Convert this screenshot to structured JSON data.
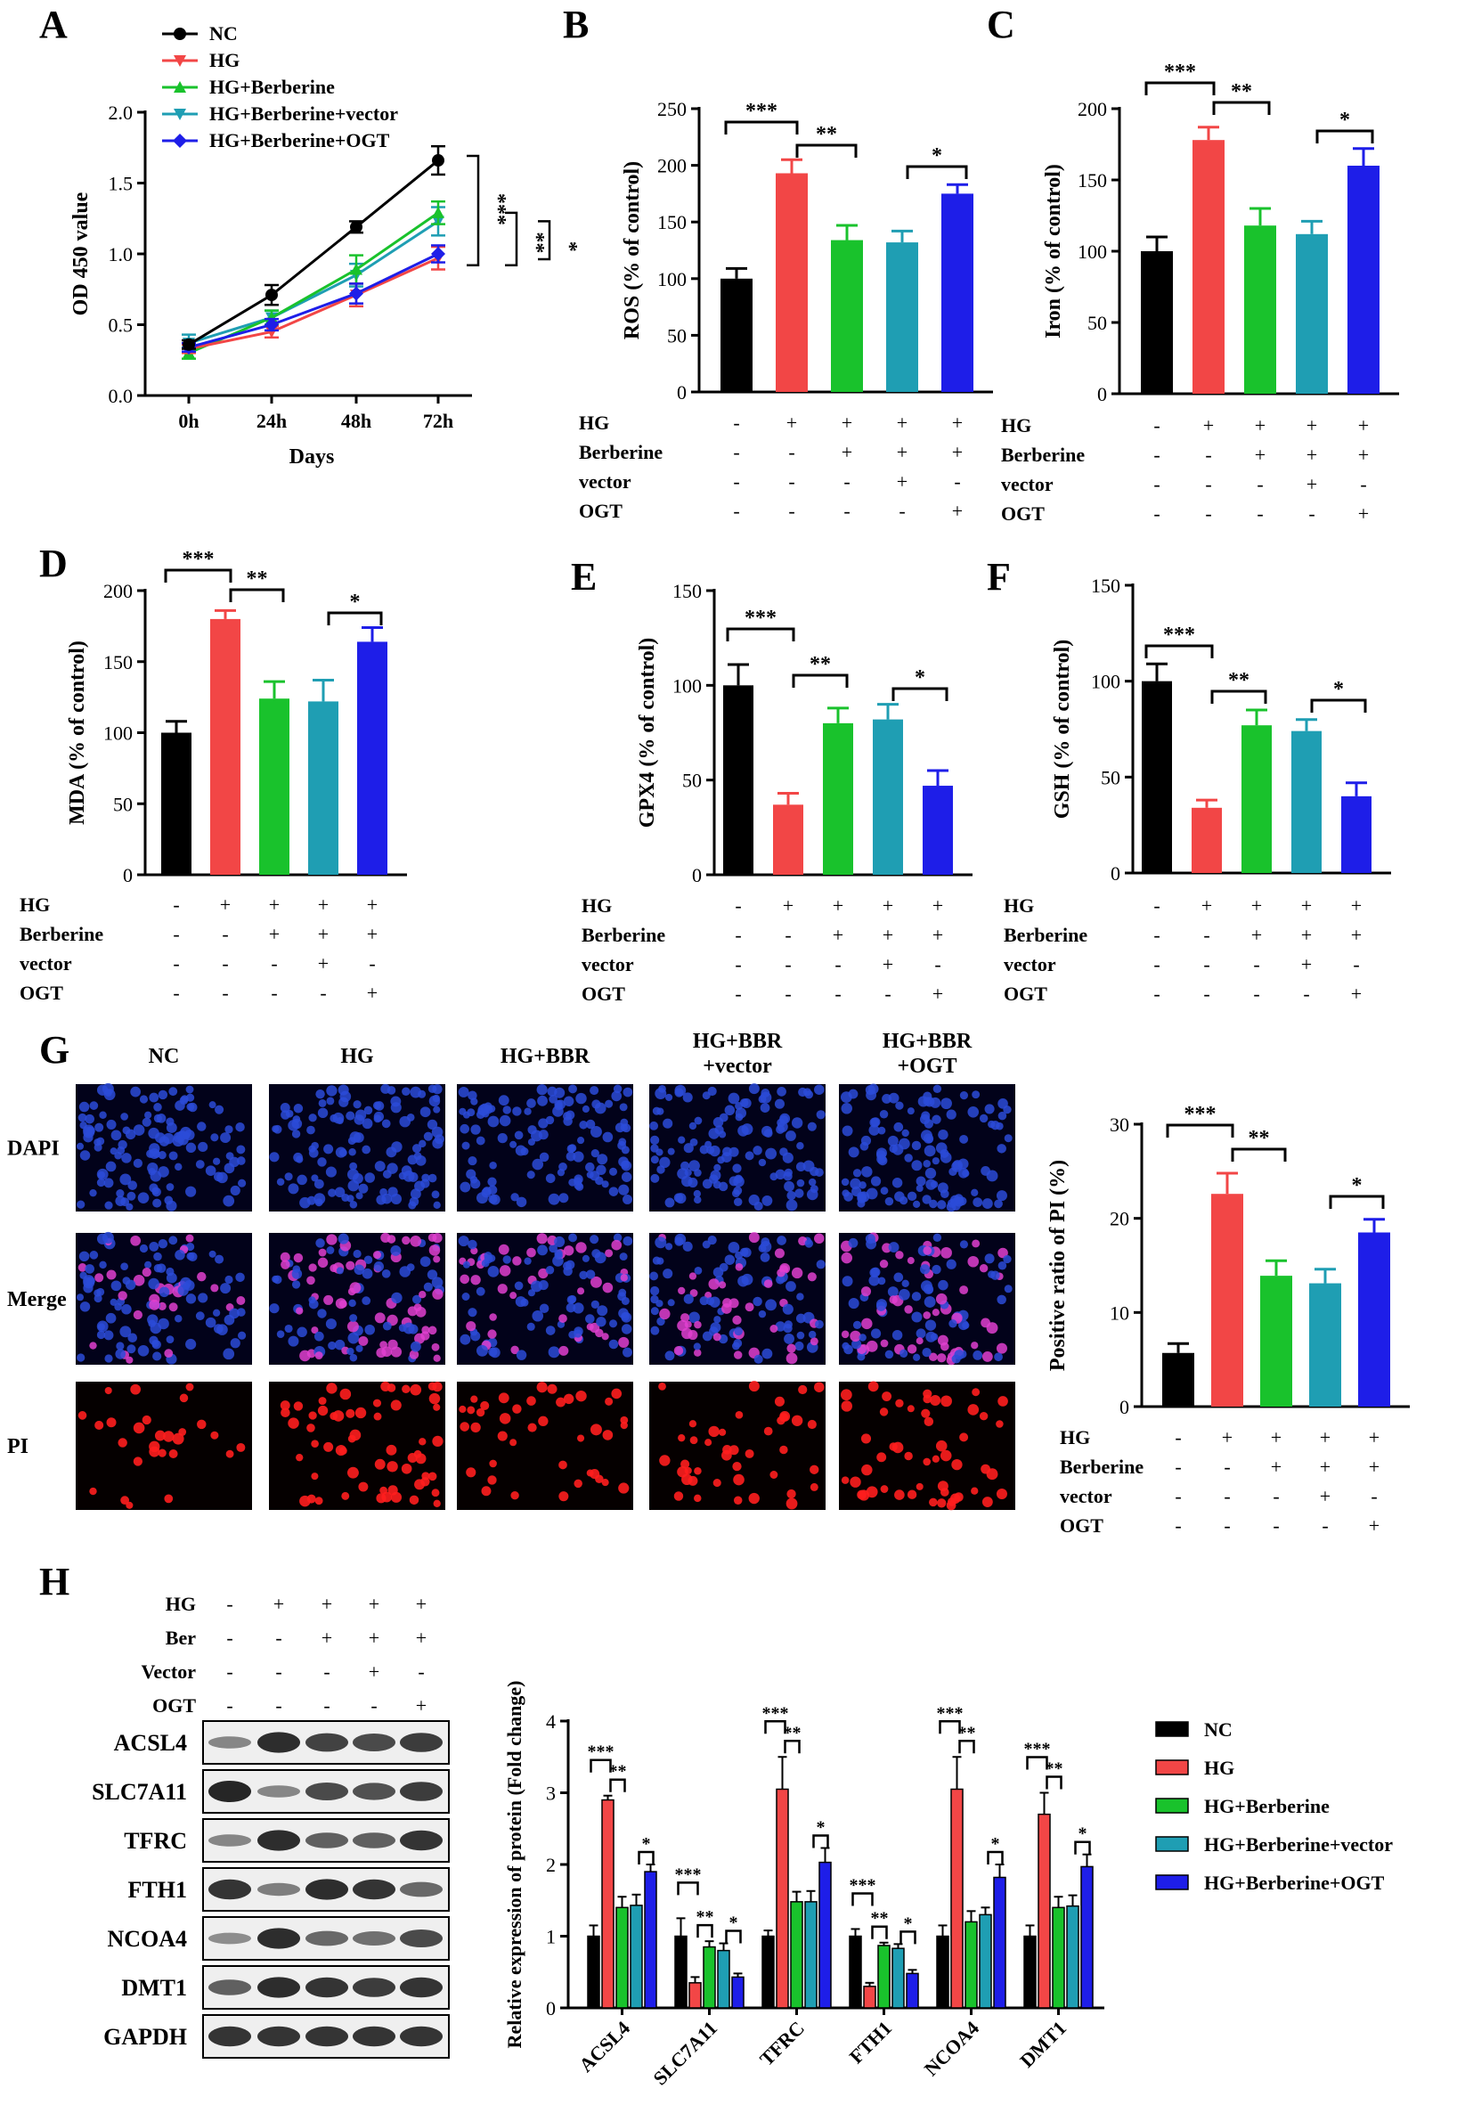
{
  "colors": {
    "NC": "#000000",
    "HG": "#f24646",
    "HG+Berberine": "#19c22c",
    "HG+Berberine+vector": "#1f9eb3",
    "HG+Berberine+OGT": "#1e1ee8",
    "axis": "#000000",
    "blot_band": "#1a1a1a",
    "dapi": "#2b4bd8",
    "merge_pink": "#e040d0",
    "pi_red": "#ff1e1e"
  },
  "panel_labels": [
    "A",
    "B",
    "C",
    "D",
    "E",
    "F",
    "G",
    "H"
  ],
  "treatment_rows": {
    "labels": [
      "HG",
      "Berberine",
      "vector",
      "OGT"
    ],
    "signs": [
      [
        "-",
        "+",
        "+",
        "+",
        "+"
      ],
      [
        "-",
        "-",
        "+",
        "+",
        "+"
      ],
      [
        "-",
        "-",
        "-",
        "+",
        "-"
      ],
      [
        "-",
        "-",
        "-",
        "-",
        "+"
      ]
    ]
  },
  "chart_data": [
    {
      "panel": "A",
      "type": "line",
      "categories": [
        "0h",
        "24h",
        "48h",
        "72h"
      ],
      "xlabel": "Days",
      "ylabel": "OD 450 value",
      "ylim": [
        0,
        2.0
      ],
      "yticks": [
        "0.0",
        "0.5",
        "1.0",
        "1.5",
        "2.0"
      ],
      "legend": "top-left",
      "series": [
        {
          "name": "NC",
          "values": [
            0.36,
            0.71,
            1.19,
            1.66
          ],
          "errors": [
            0.03,
            0.07,
            0.04,
            0.1
          ]
        },
        {
          "name": "HG",
          "values": [
            0.33,
            0.45,
            0.71,
            0.97
          ],
          "errors": [
            0.03,
            0.04,
            0.08,
            0.08
          ]
        },
        {
          "name": "HG+Berberine",
          "values": [
            0.3,
            0.55,
            0.89,
            1.29
          ],
          "errors": [
            0.04,
            0.05,
            0.1,
            0.08
          ]
        },
        {
          "name": "HG+Berberine+vector",
          "values": [
            0.37,
            0.55,
            0.85,
            1.23
          ],
          "errors": [
            0.06,
            0.05,
            0.08,
            0.1
          ]
        },
        {
          "name": "HG+Berberine+OGT",
          "values": [
            0.34,
            0.5,
            0.72,
            1.0
          ],
          "errors": [
            0.03,
            0.04,
            0.07,
            0.06
          ]
        }
      ],
      "significance": [
        "***",
        "**",
        "*"
      ]
    },
    {
      "panel": "B",
      "type": "bar",
      "ylabel": "ROS (% of control)",
      "ylim": [
        0,
        250
      ],
      "yticks": [
        "0",
        "50",
        "100",
        "150",
        "200",
        "250"
      ],
      "values": [
        100,
        193,
        134,
        132,
        175
      ],
      "errors": [
        9,
        12,
        13,
        10,
        8
      ],
      "significance": [
        "***",
        "**",
        "*"
      ]
    },
    {
      "panel": "C",
      "type": "bar",
      "ylabel": "Iron (% of control)",
      "ylim": [
        0,
        200
      ],
      "yticks": [
        "0",
        "50",
        "100",
        "150",
        "200"
      ],
      "values": [
        100,
        178,
        118,
        112,
        160
      ],
      "errors": [
        10,
        9,
        12,
        9,
        12
      ],
      "significance": [
        "***",
        "**",
        "*"
      ]
    },
    {
      "panel": "D",
      "type": "bar",
      "ylabel": "MDA (% of control)",
      "ylim": [
        0,
        200
      ],
      "yticks": [
        "0",
        "50",
        "100",
        "150",
        "200"
      ],
      "values": [
        100,
        180,
        124,
        122,
        164
      ],
      "errors": [
        8,
        6,
        12,
        15,
        10
      ],
      "significance": [
        "***",
        "**",
        "*"
      ]
    },
    {
      "panel": "E",
      "type": "bar",
      "ylabel": "GPX4 (% of control)",
      "ylim": [
        0,
        150
      ],
      "yticks": [
        "0",
        "50",
        "100",
        "150"
      ],
      "values": [
        100,
        37,
        80,
        82,
        47
      ],
      "errors": [
        11,
        6,
        8,
        8,
        8
      ],
      "significance": [
        "***",
        "**",
        "*"
      ]
    },
    {
      "panel": "F",
      "type": "bar",
      "ylabel": "GSH (% of control)",
      "ylim": [
        0,
        150
      ],
      "yticks": [
        "0",
        "50",
        "100",
        "150"
      ],
      "values": [
        100,
        34,
        77,
        74,
        40
      ],
      "errors": [
        9,
        4,
        8,
        6,
        7
      ],
      "significance": [
        "***",
        "**",
        "*"
      ]
    },
    {
      "panel": "G",
      "type": "bar",
      "ylabel": "Positive ratio of PI (%)",
      "ylim": [
        0,
        30
      ],
      "yticks": [
        "0",
        "10",
        "20",
        "30"
      ],
      "values": [
        5.7,
        22.6,
        13.9,
        13.1,
        18.5
      ],
      "errors": [
        1.0,
        2.2,
        1.6,
        1.5,
        1.4
      ],
      "significance": [
        "***",
        "**",
        "*"
      ]
    },
    {
      "panel": "H",
      "type": "bar",
      "ylabel": "Relative expression of protein (Fold change)",
      "ylim": [
        0,
        4
      ],
      "yticks": [
        "0",
        "1",
        "2",
        "3",
        "4"
      ],
      "categories": [
        "ACSL4",
        "SLC7A11",
        "TFRC",
        "FTH1",
        "NCOA4",
        "DMT1"
      ],
      "legend": "right",
      "series": [
        {
          "name": "NC",
          "values": [
            1.0,
            1.0,
            1.0,
            1.0,
            1.0,
            1.0
          ],
          "errors": [
            0.15,
            0.25,
            0.08,
            0.1,
            0.15,
            0.15
          ]
        },
        {
          "name": "HG",
          "values": [
            2.9,
            0.35,
            3.05,
            0.3,
            3.05,
            2.7
          ],
          "errors": [
            0.06,
            0.08,
            0.45,
            0.05,
            0.45,
            0.3
          ]
        },
        {
          "name": "HG+Berberine",
          "values": [
            1.4,
            0.85,
            1.48,
            0.87,
            1.2,
            1.4
          ],
          "errors": [
            0.15,
            0.08,
            0.14,
            0.04,
            0.15,
            0.15
          ]
        },
        {
          "name": "HG+Berberine+vector",
          "values": [
            1.43,
            0.8,
            1.48,
            0.83,
            1.3,
            1.42
          ],
          "errors": [
            0.15,
            0.1,
            0.15,
            0.06,
            0.1,
            0.15
          ]
        },
        {
          "name": "HG+Berberine+OGT",
          "values": [
            1.9,
            0.43,
            2.03,
            0.48,
            1.82,
            1.97
          ],
          "errors": [
            0.1,
            0.05,
            0.2,
            0.05,
            0.18,
            0.17
          ]
        }
      ],
      "significance": [
        "***",
        "**",
        "*"
      ]
    }
  ],
  "panel_G_images": {
    "columns": [
      "NC",
      "HG",
      "HG+BBR",
      "HG+BBR\n+vector",
      "HG+BBR\n+OGT"
    ],
    "rows": [
      "DAPI",
      "Merge",
      "PI"
    ],
    "pi_positive_ratio_shown": [
      5.7,
      22.6,
      13.9,
      13.1,
      18.5
    ]
  },
  "panel_H_blot": {
    "header_rows": {
      "labels": [
        "HG",
        "Ber",
        "Vector",
        "OGT"
      ],
      "signs": [
        [
          "-",
          "+",
          "+",
          "+",
          "+"
        ],
        [
          "-",
          "-",
          "+",
          "+",
          "+"
        ],
        [
          "-",
          "-",
          "-",
          "+",
          "-"
        ],
        [
          "-",
          "-",
          "-",
          "-",
          "+"
        ]
      ]
    },
    "proteins": [
      "ACSL4",
      "SLC7A11",
      "TFRC",
      "FTH1",
      "NCOA4",
      "DMT1",
      "GAPDH"
    ],
    "band_intensity": [
      [
        0.35,
        0.95,
        0.8,
        0.75,
        0.85
      ],
      [
        1.0,
        0.35,
        0.75,
        0.7,
        0.85
      ],
      [
        0.35,
        0.95,
        0.6,
        0.6,
        0.9
      ],
      [
        0.9,
        0.4,
        0.95,
        0.9,
        0.55
      ],
      [
        0.3,
        0.95,
        0.55,
        0.5,
        0.75
      ],
      [
        0.6,
        0.95,
        0.9,
        0.85,
        0.9
      ],
      [
        0.9,
        0.9,
        0.9,
        0.9,
        0.9
      ]
    ]
  }
}
